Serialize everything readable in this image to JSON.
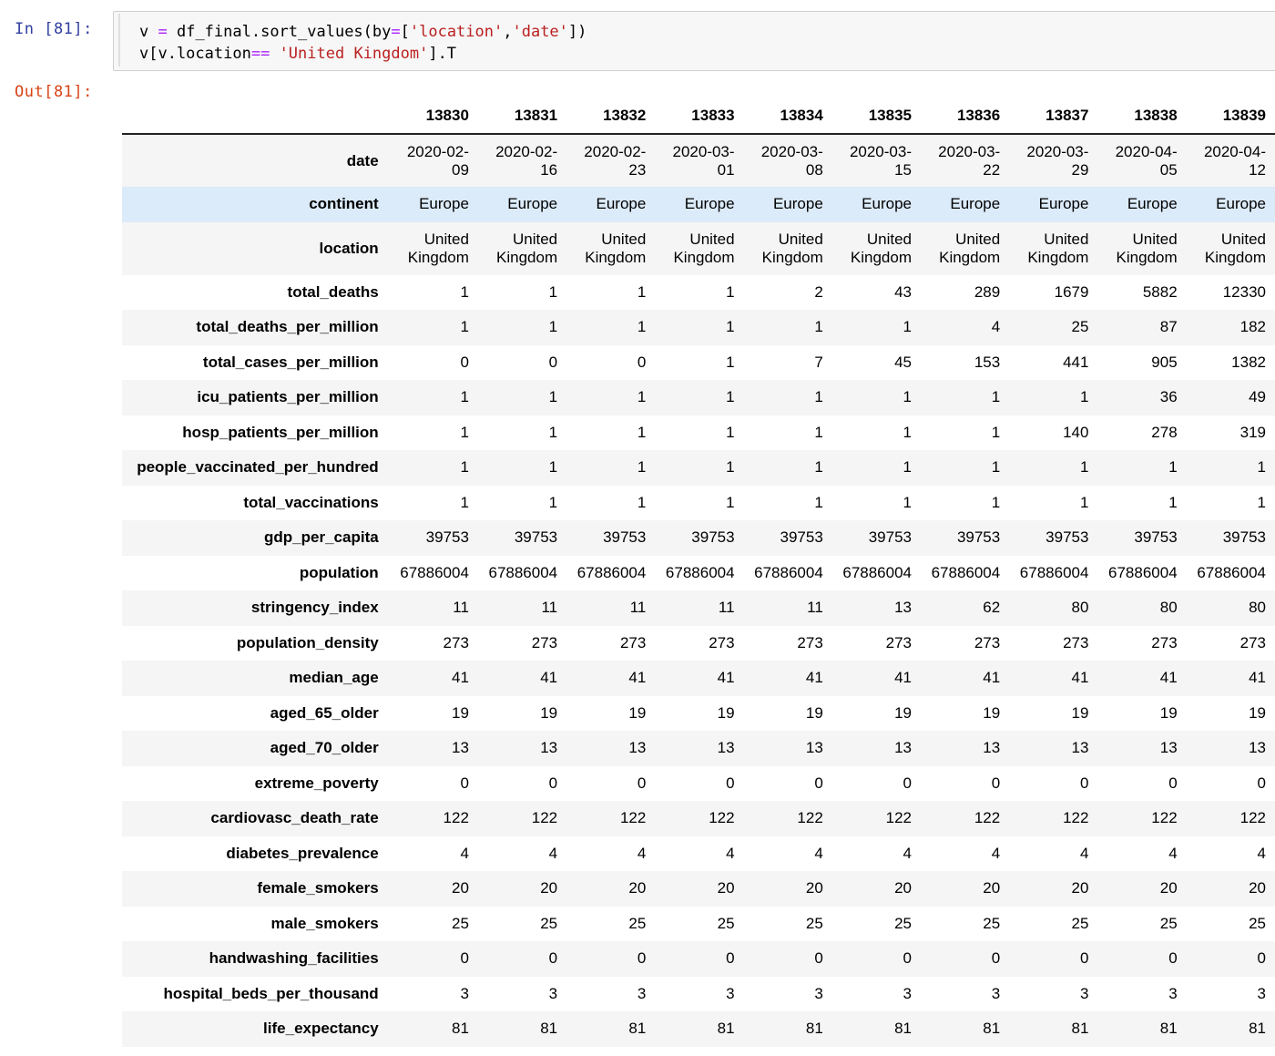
{
  "cell": {
    "in_prompt": "In [81]:",
    "out_prompt": "Out[81]:",
    "code_lines": [
      [
        {
          "t": "v ",
          "c": ""
        },
        {
          "t": "=",
          "c": "op"
        },
        {
          "t": " df_final.sort_values(by",
          "c": ""
        },
        {
          "t": "=",
          "c": "op"
        },
        {
          "t": "[",
          "c": ""
        },
        {
          "t": "'location'",
          "c": "str"
        },
        {
          "t": ",",
          "c": ""
        },
        {
          "t": "'date'",
          "c": "str"
        },
        {
          "t": "])",
          "c": ""
        }
      ],
      [
        {
          "t": "v[v.location",
          "c": ""
        },
        {
          "t": "==",
          "c": "op"
        },
        {
          "t": " ",
          "c": ""
        },
        {
          "t": "'United Kingdom'",
          "c": "str"
        },
        {
          "t": "].T",
          "c": ""
        }
      ]
    ]
  },
  "table": {
    "columns": [
      "13830",
      "13831",
      "13832",
      "13833",
      "13834",
      "13835",
      "13836",
      "13837",
      "13838",
      "13839"
    ],
    "rows": [
      {
        "label": "date",
        "tall": true,
        "values": [
          "2020-02-\n09",
          "2020-02-\n16",
          "2020-02-\n23",
          "2020-03-\n01",
          "2020-03-\n08",
          "2020-03-\n15",
          "2020-03-\n22",
          "2020-03-\n29",
          "2020-04-\n05",
          "2020-04-\n12"
        ]
      },
      {
        "label": "continent",
        "highlight": true,
        "values": [
          "Europe",
          "Europe",
          "Europe",
          "Europe",
          "Europe",
          "Europe",
          "Europe",
          "Europe",
          "Europe",
          "Europe"
        ]
      },
      {
        "label": "location",
        "tall": true,
        "values": [
          "United\nKingdom",
          "United\nKingdom",
          "United\nKingdom",
          "United\nKingdom",
          "United\nKingdom",
          "United\nKingdom",
          "United\nKingdom",
          "United\nKingdom",
          "United\nKingdom",
          "United\nKingdom"
        ]
      },
      {
        "label": "total_deaths",
        "values": [
          "1",
          "1",
          "1",
          "1",
          "2",
          "43",
          "289",
          "1679",
          "5882",
          "12330"
        ]
      },
      {
        "label": "total_deaths_per_million",
        "values": [
          "1",
          "1",
          "1",
          "1",
          "1",
          "1",
          "4",
          "25",
          "87",
          "182"
        ]
      },
      {
        "label": "total_cases_per_million",
        "values": [
          "0",
          "0",
          "0",
          "1",
          "7",
          "45",
          "153",
          "441",
          "905",
          "1382"
        ]
      },
      {
        "label": "icu_patients_per_million",
        "values": [
          "1",
          "1",
          "1",
          "1",
          "1",
          "1",
          "1",
          "1",
          "36",
          "49"
        ]
      },
      {
        "label": "hosp_patients_per_million",
        "values": [
          "1",
          "1",
          "1",
          "1",
          "1",
          "1",
          "1",
          "140",
          "278",
          "319"
        ]
      },
      {
        "label": "people_vaccinated_per_hundred",
        "values": [
          "1",
          "1",
          "1",
          "1",
          "1",
          "1",
          "1",
          "1",
          "1",
          "1"
        ]
      },
      {
        "label": "total_vaccinations",
        "values": [
          "1",
          "1",
          "1",
          "1",
          "1",
          "1",
          "1",
          "1",
          "1",
          "1"
        ]
      },
      {
        "label": "gdp_per_capita",
        "values": [
          "39753",
          "39753",
          "39753",
          "39753",
          "39753",
          "39753",
          "39753",
          "39753",
          "39753",
          "39753"
        ]
      },
      {
        "label": "population",
        "values": [
          "67886004",
          "67886004",
          "67886004",
          "67886004",
          "67886004",
          "67886004",
          "67886004",
          "67886004",
          "67886004",
          "67886004"
        ]
      },
      {
        "label": "stringency_index",
        "values": [
          "11",
          "11",
          "11",
          "11",
          "11",
          "13",
          "62",
          "80",
          "80",
          "80"
        ]
      },
      {
        "label": "population_density",
        "values": [
          "273",
          "273",
          "273",
          "273",
          "273",
          "273",
          "273",
          "273",
          "273",
          "273"
        ]
      },
      {
        "label": "median_age",
        "values": [
          "41",
          "41",
          "41",
          "41",
          "41",
          "41",
          "41",
          "41",
          "41",
          "41"
        ]
      },
      {
        "label": "aged_65_older",
        "values": [
          "19",
          "19",
          "19",
          "19",
          "19",
          "19",
          "19",
          "19",
          "19",
          "19"
        ]
      },
      {
        "label": "aged_70_older",
        "values": [
          "13",
          "13",
          "13",
          "13",
          "13",
          "13",
          "13",
          "13",
          "13",
          "13"
        ]
      },
      {
        "label": "extreme_poverty",
        "values": [
          "0",
          "0",
          "0",
          "0",
          "0",
          "0",
          "0",
          "0",
          "0",
          "0"
        ]
      },
      {
        "label": "cardiovasc_death_rate",
        "values": [
          "122",
          "122",
          "122",
          "122",
          "122",
          "122",
          "122",
          "122",
          "122",
          "122"
        ]
      },
      {
        "label": "diabetes_prevalence",
        "values": [
          "4",
          "4",
          "4",
          "4",
          "4",
          "4",
          "4",
          "4",
          "4",
          "4"
        ]
      },
      {
        "label": "female_smokers",
        "values": [
          "20",
          "20",
          "20",
          "20",
          "20",
          "20",
          "20",
          "20",
          "20",
          "20"
        ]
      },
      {
        "label": "male_smokers",
        "values": [
          "25",
          "25",
          "25",
          "25",
          "25",
          "25",
          "25",
          "25",
          "25",
          "25"
        ]
      },
      {
        "label": "handwashing_facilities",
        "values": [
          "0",
          "0",
          "0",
          "0",
          "0",
          "0",
          "0",
          "0",
          "0",
          "0"
        ]
      },
      {
        "label": "hospital_beds_per_thousand",
        "values": [
          "3",
          "3",
          "3",
          "3",
          "3",
          "3",
          "3",
          "3",
          "3",
          "3"
        ]
      },
      {
        "label": "life_expectancy",
        "values": [
          "81",
          "81",
          "81",
          "81",
          "81",
          "81",
          "81",
          "81",
          "81",
          "81"
        ]
      }
    ]
  },
  "colors": {
    "prompt_in": "#303f9f",
    "prompt_out": "#d84315",
    "row_highlight": "#dcebf9",
    "row_stripe": "#f5f5f5",
    "code_string": "#ba2121",
    "code_operator": "#aa22ff"
  }
}
